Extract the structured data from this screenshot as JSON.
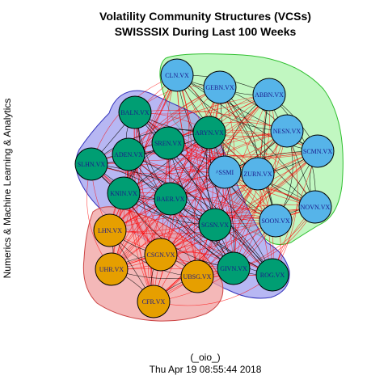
{
  "title": {
    "line1": "Volatility Community Structures (VCSs)",
    "line2": "SWISSSIX During Last 100 Weeks"
  },
  "side_label": "Numerics & Machine Learning & Analytics",
  "footer": {
    "handle": "(_oio_)",
    "timestamp": "Thu Apr 19 08:55:44 2018"
  },
  "colors": {
    "community_blue_node": "#56b4e9",
    "community_green_node": "#009e73",
    "community_orange_node": "#e69f00",
    "hull_green": "#8ef08e",
    "hull_blue": "#9999ee",
    "hull_red": "#f0a0a0",
    "edge_red": "#ff0000",
    "edge_black": "#000000",
    "label_color": "#1a1a8c"
  },
  "communities": [
    {
      "id": "blue",
      "color": "#56b4e9"
    },
    {
      "id": "green",
      "color": "#009e73"
    },
    {
      "id": "orange",
      "color": "#e69f00"
    }
  ],
  "nodes": [
    {
      "id": "CLN.VX",
      "label": "CLN.VX",
      "community": "blue"
    },
    {
      "id": "GEBN.VX",
      "label": "GEBN.VX",
      "community": "blue"
    },
    {
      "id": "ABBN.VX",
      "label": "ABBN.VX",
      "community": "blue"
    },
    {
      "id": "NESN.VX",
      "label": "NESN.VX",
      "community": "blue"
    },
    {
      "id": "SCMN.VX",
      "label": "SCMN.VX",
      "community": "blue"
    },
    {
      "id": "^SSMI",
      "label": "^SSMI",
      "community": "blue"
    },
    {
      "id": "ZURN.VX",
      "label": "ZURN.VX",
      "community": "blue"
    },
    {
      "id": "NOVN.VX",
      "label": "NOVN.VX",
      "community": "blue"
    },
    {
      "id": "SOON.VX",
      "label": "SOON.VX",
      "community": "blue"
    },
    {
      "id": "BALN.VX",
      "label": "BALN.VX",
      "community": "green"
    },
    {
      "id": "ARYN.VX",
      "label": "ARYN.VX",
      "community": "green"
    },
    {
      "id": "SREN.VX",
      "label": "SREN.VX",
      "community": "green"
    },
    {
      "id": "ADEN.VX",
      "label": "ADEN.VX",
      "community": "green"
    },
    {
      "id": "SLHN.VX",
      "label": "SLHN.VX",
      "community": "green"
    },
    {
      "id": "KNIN.VX",
      "label": "KNIN.VX",
      "community": "green"
    },
    {
      "id": "BAER.VX",
      "label": "BAER.VX",
      "community": "green"
    },
    {
      "id": "SGSN.VX",
      "label": "SGSN.VX",
      "community": "green"
    },
    {
      "id": "GIVN.VX",
      "label": "GIVN.VX",
      "community": "green"
    },
    {
      "id": "ROG.VX",
      "label": "ROG.VX",
      "community": "green"
    },
    {
      "id": "LHN.VX",
      "label": "LHN.VX",
      "community": "orange"
    },
    {
      "id": "CSGN.VX",
      "label": "CSGN.VX",
      "community": "orange"
    },
    {
      "id": "UHR.VX",
      "label": "UHR.VX",
      "community": "orange"
    },
    {
      "id": "UBSG.VX",
      "label": "UBSG.VX",
      "community": "orange"
    },
    {
      "id": "CFR.VX",
      "label": "CFR.VX",
      "community": "orange"
    }
  ]
}
